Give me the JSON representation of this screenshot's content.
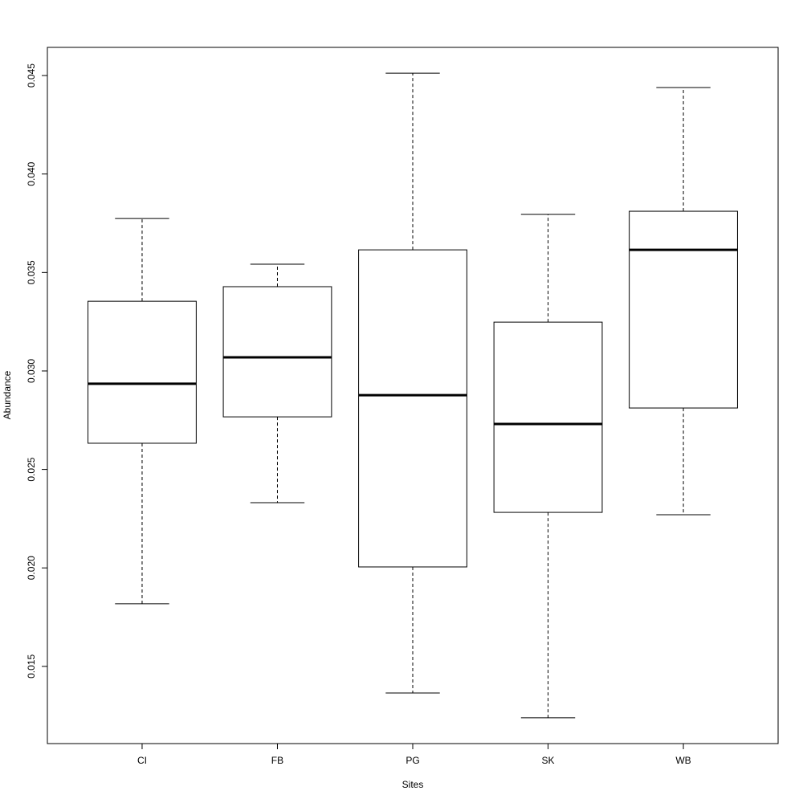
{
  "chart_data": {
    "type": "box",
    "x_label": "Sites",
    "y_label": "Abundance",
    "categories": [
      "CI",
      "FB",
      "PG",
      "SK",
      "WB"
    ],
    "min": [
      0.01818,
      0.02331,
      0.01365,
      0.01239,
      0.0227
    ],
    "q1": [
      0.02633,
      0.02767,
      0.02005,
      0.02282,
      0.02812
    ],
    "median": [
      0.02935,
      0.03069,
      0.02877,
      0.02731,
      0.03615
    ],
    "q3": [
      0.03354,
      0.03428,
      0.03615,
      0.03248,
      0.03811
    ],
    "max": [
      0.03774,
      0.03542,
      0.04512,
      0.03795,
      0.04439
    ],
    "ylim": [
      0.01108,
      0.04643
    ],
    "yticks": [
      0.015,
      {
        "value": 0.02,
        "label": "0.020"
      },
      0.025,
      {
        "value": 0.03,
        "label": "0.030"
      },
      0.035,
      {
        "value": 0.04,
        "label": "0.040"
      },
      0.045
    ],
    "color": "#000000"
  }
}
